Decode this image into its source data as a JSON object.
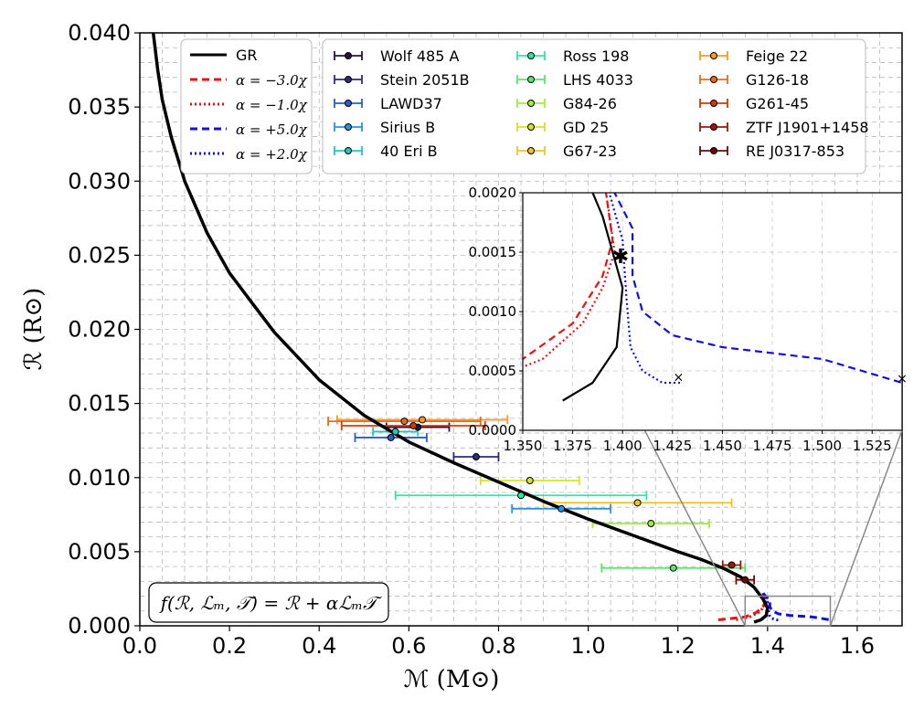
{
  "chart_data": {
    "type": "line",
    "xlabel": "ℳ (M⊙)",
    "ylabel": "ℛ (R⊙)",
    "xlim": [
      0.0,
      1.7
    ],
    "ylim": [
      0.0,
      0.04
    ],
    "x_ticks": [
      "0.0",
      "0.2",
      "0.4",
      "0.6",
      "0.8",
      "1.0",
      "1.2",
      "1.4",
      "1.6"
    ],
    "y_ticks": [
      "0.000",
      "0.005",
      "0.010",
      "0.015",
      "0.020",
      "0.025",
      "0.030",
      "0.035",
      "0.040"
    ],
    "grid": true,
    "formula": "f(ℛ, ℒₘ, 𝒯) = ℛ + αℒₘ𝒯",
    "model_legend_position": "top-left",
    "models": [
      {
        "name": "GR",
        "color": "#000000",
        "dash": "solid",
        "points": [
          [
            0.03,
            0.04
          ],
          [
            0.04,
            0.0375
          ],
          [
            0.05,
            0.0355
          ],
          [
            0.07,
            0.033
          ],
          [
            0.1,
            0.03
          ],
          [
            0.15,
            0.0265
          ],
          [
            0.2,
            0.0238
          ],
          [
            0.25,
            0.0218
          ],
          [
            0.3,
            0.0198
          ],
          [
            0.35,
            0.0182
          ],
          [
            0.4,
            0.0166
          ],
          [
            0.5,
            0.0142
          ],
          [
            0.6,
            0.0124
          ],
          [
            0.7,
            0.011
          ],
          [
            0.8,
            0.0097
          ],
          [
            0.9,
            0.0084
          ],
          [
            1.0,
            0.0072
          ],
          [
            1.1,
            0.0061
          ],
          [
            1.2,
            0.005
          ],
          [
            1.25,
            0.0045
          ],
          [
            1.3,
            0.0039
          ],
          [
            1.34,
            0.0033
          ],
          [
            1.37,
            0.0026
          ],
          [
            1.39,
            0.0018
          ],
          [
            1.4,
            0.0012
          ],
          [
            1.397,
            0.0007
          ],
          [
            1.385,
            0.0004
          ],
          [
            1.37,
            0.00025
          ]
        ]
      },
      {
        "name": "α = −3.0χ",
        "color": "#ee1111",
        "dash": "8,5",
        "points": [
          [
            1.29,
            0.0004
          ],
          [
            1.32,
            0.0005
          ],
          [
            1.35,
            0.0006
          ],
          [
            1.375,
            0.0009
          ],
          [
            1.39,
            0.0013
          ],
          [
            1.395,
            0.0016
          ],
          [
            1.39,
            0.0022
          ]
        ]
      },
      {
        "name": "α = −1.0χ",
        "color": "#ee1111",
        "dash": "2,3",
        "points": [
          [
            1.33,
            0.0004
          ],
          [
            1.36,
            0.0006
          ],
          [
            1.38,
            0.0009
          ],
          [
            1.39,
            0.0012
          ],
          [
            1.396,
            0.0015
          ],
          [
            1.39,
            0.0022
          ]
        ]
      },
      {
        "name": "α = +5.0χ",
        "color": "#1111dd",
        "dash": "8,5",
        "points": [
          [
            1.39,
            0.0022
          ],
          [
            1.405,
            0.0017
          ],
          [
            1.405,
            0.0013
          ],
          [
            1.41,
            0.001
          ],
          [
            1.425,
            0.0008
          ],
          [
            1.45,
            0.0007
          ],
          [
            1.5,
            0.0006
          ],
          [
            1.54,
            0.0004
          ]
        ]
      },
      {
        "name": "α = +2.0χ",
        "color": "#1111dd",
        "dash": "2,3",
        "points": [
          [
            1.39,
            0.0022
          ],
          [
            1.4,
            0.0016
          ],
          [
            1.402,
            0.0011
          ],
          [
            1.404,
            0.0007
          ],
          [
            1.41,
            0.0005
          ],
          [
            1.42,
            0.0004
          ],
          [
            1.43,
            0.0004
          ]
        ]
      }
    ],
    "observations": [
      {
        "name": "Wolf 485 A",
        "color": "#2a1040",
        "mass": 0.62,
        "radius": 0.0134,
        "err": 0.07
      },
      {
        "name": "Stein 2051B",
        "color": "#2c2c7a",
        "mass": 0.75,
        "radius": 0.0114,
        "err": 0.05
      },
      {
        "name": "LAWD37",
        "color": "#2f5ad0",
        "mass": 0.56,
        "radius": 0.0127,
        "err": 0.08
      },
      {
        "name": "Sirius B",
        "color": "#2d92e0",
        "mass": 0.94,
        "radius": 0.0079,
        "err": 0.11
      },
      {
        "name": "40 Eri B",
        "color": "#1ec8c0",
        "mass": 0.57,
        "radius": 0.0131,
        "err": 0.05
      },
      {
        "name": "Ross 198",
        "color": "#2ee6a6",
        "mass": 0.85,
        "radius": 0.0088,
        "err": 0.28
      },
      {
        "name": "LHS 4033",
        "color": "#58e86e",
        "mass": 1.19,
        "radius": 0.0039,
        "err": 0.16
      },
      {
        "name": "G84-26",
        "color": "#a2ee34",
        "mass": 1.14,
        "radius": 0.0069,
        "err": 0.13
      },
      {
        "name": "GD 25",
        "color": "#d8e228",
        "mass": 0.87,
        "radius": 0.0098,
        "err": 0.11
      },
      {
        "name": "G67-23",
        "color": "#f2c228",
        "mass": 1.11,
        "radius": 0.0083,
        "err": 0.21
      },
      {
        "name": "Feige 22",
        "color": "#fb9a1c",
        "mass": 0.63,
        "radius": 0.0139,
        "err": 0.19
      },
      {
        "name": "G126-18",
        "color": "#f06a12",
        "mass": 0.59,
        "radius": 0.0138,
        "err": 0.17
      },
      {
        "name": "G261-45",
        "color": "#d4380a",
        "mass": 0.61,
        "radius": 0.0135,
        "err": 0.16
      },
      {
        "name": "ZTF J1901+1458",
        "color": "#9a1808",
        "mass": 1.32,
        "radius": 0.0041,
        "err": 0.02
      },
      {
        "name": "RE J0317-853",
        "color": "#6a0a06",
        "mass": 1.35,
        "radius": 0.0031,
        "err": 0.02
      }
    ],
    "inset": {
      "xlim": [
        1.35,
        1.54
      ],
      "ylim": [
        0.0,
        0.002
      ],
      "x_ticks": [
        "1.350",
        "1.375",
        "1.400",
        "1.425",
        "1.450",
        "1.475",
        "1.500",
        "1.525"
      ],
      "y_ticks": [
        "0.0000",
        "0.0005",
        "0.0010",
        "0.0015",
        "0.0020"
      ],
      "star_marker": [
        1.399,
        0.00147
      ],
      "x_markers": [
        [
          1.428,
          0.00045
        ],
        [
          1.54,
          0.00044
        ]
      ]
    }
  }
}
